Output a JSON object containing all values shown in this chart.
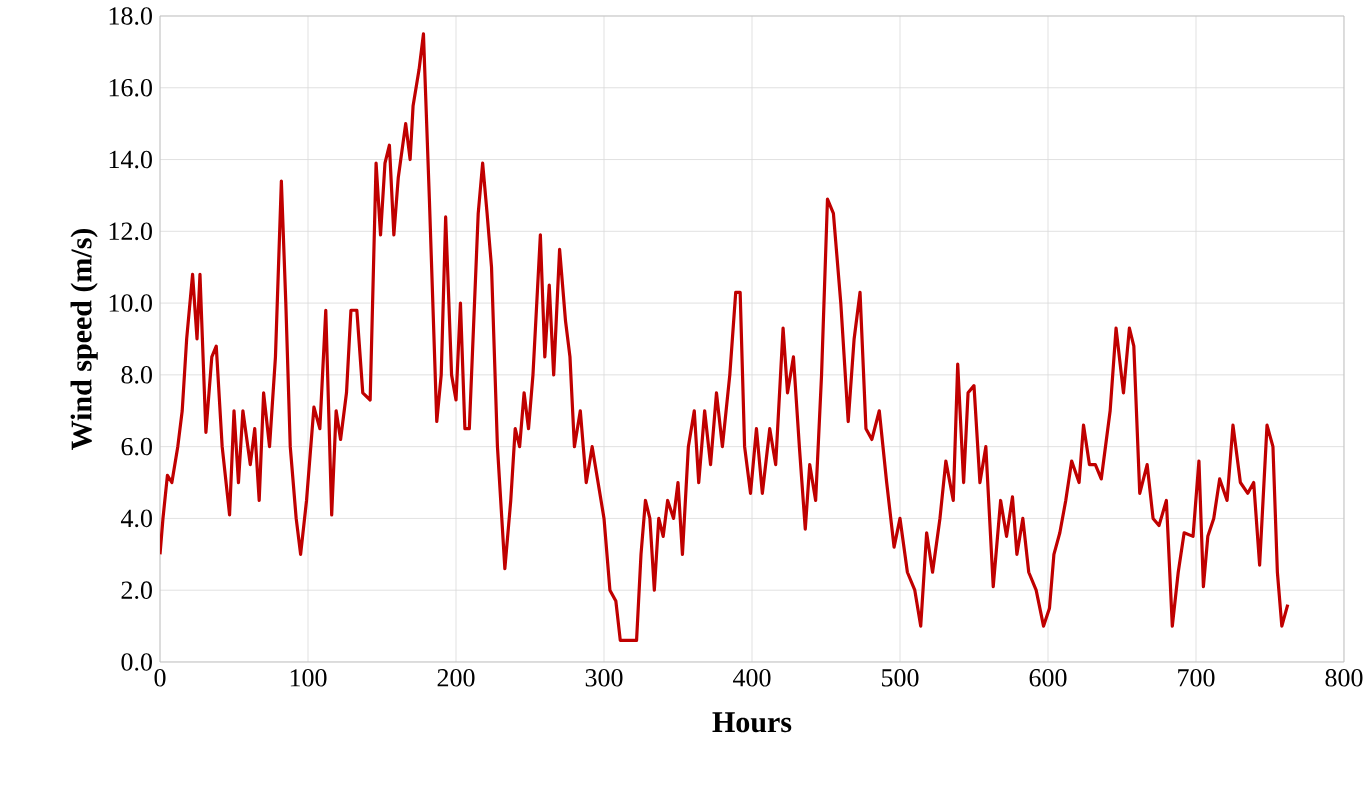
{
  "chart_data": {
    "type": "line",
    "xlabel": "Hours",
    "ylabel": "Wind  speed (m/s)",
    "xlim": [
      0,
      800
    ],
    "ylim": [
      0,
      18
    ],
    "xticks": [
      0,
      100,
      200,
      300,
      400,
      500,
      600,
      700,
      800
    ],
    "yticks": [
      {
        "value": 0,
        "label": "0.0"
      },
      {
        "value": 2,
        "label": "2.0"
      },
      {
        "value": 4,
        "label": "4.0"
      },
      {
        "value": 6,
        "label": "6.0"
      },
      {
        "value": 8,
        "label": "8.0"
      },
      {
        "value": 10,
        "label": "10.0"
      },
      {
        "value": 12,
        "label": "12.0"
      },
      {
        "value": 14,
        "label": "14.0"
      },
      {
        "value": 16,
        "label": "16.0"
      },
      {
        "value": 18,
        "label": "18.0"
      }
    ],
    "grid": true,
    "marker": "none",
    "line_style": "solid",
    "series": [
      {
        "color": "#c00000",
        "x": [
          0,
          2,
          5,
          8,
          12,
          15,
          18,
          22,
          25,
          27,
          31,
          35,
          38,
          42,
          47,
          50,
          53,
          56,
          61,
          64,
          67,
          70,
          74,
          78,
          82,
          85,
          88,
          92,
          95,
          99,
          104,
          108,
          112,
          116,
          119,
          122,
          126,
          129,
          133,
          137,
          142,
          146,
          149,
          152,
          155,
          158,
          161,
          166,
          169,
          171,
          175,
          178,
          182,
          187,
          190,
          193,
          197,
          200,
          203,
          206,
          209,
          212,
          215,
          218,
          221,
          224,
          228,
          233,
          237,
          240,
          243,
          246,
          249,
          252,
          257,
          260,
          263,
          266,
          270,
          274,
          277,
          280,
          284,
          288,
          292,
          296,
          300,
          304,
          308,
          311,
          316,
          322,
          325,
          328,
          331,
          334,
          337,
          340,
          343,
          347,
          350,
          353,
          357,
          361,
          364,
          368,
          372,
          376,
          380,
          385,
          389,
          392,
          395,
          399,
          403,
          407,
          412,
          416,
          421,
          424,
          428,
          432,
          436,
          439,
          443,
          447,
          451,
          455,
          460,
          465,
          469,
          473,
          477,
          481,
          486,
          491,
          496,
          500,
          505,
          510,
          514,
          518,
          522,
          527,
          531,
          536,
          539,
          543,
          546,
          550,
          554,
          558,
          563,
          568,
          572,
          576,
          579,
          583,
          587,
          592,
          597,
          601,
          604,
          608,
          612,
          616,
          621,
          624,
          628,
          632,
          636,
          642,
          646,
          651,
          655,
          658,
          662,
          667,
          671,
          675,
          680,
          684,
          688,
          692,
          698,
          702,
          705,
          708,
          712,
          716,
          721,
          725,
          730,
          735,
          739,
          743,
          748,
          752,
          755,
          758,
          762
        ],
        "values": [
          3.0,
          4.0,
          5.2,
          5.0,
          6.0,
          7.0,
          9.0,
          10.8,
          9.0,
          10.8,
          6.4,
          8.5,
          8.8,
          6.0,
          4.1,
          7.0,
          5.0,
          7.0,
          5.5,
          6.5,
          4.5,
          7.5,
          6.0,
          8.5,
          13.4,
          10.0,
          6.0,
          4.0,
          3.0,
          4.5,
          7.1,
          6.5,
          9.8,
          4.1,
          7.0,
          6.2,
          7.5,
          9.8,
          9.8,
          7.5,
          7.3,
          13.9,
          11.9,
          13.9,
          14.4,
          11.9,
          13.5,
          15.0,
          14.0,
          15.5,
          16.5,
          17.5,
          12.9,
          6.7,
          8.0,
          12.4,
          8.0,
          7.3,
          10.0,
          6.5,
          6.5,
          9.5,
          12.5,
          13.9,
          12.5,
          11.0,
          6.0,
          2.6,
          4.5,
          6.5,
          6.0,
          7.5,
          6.5,
          8.0,
          11.9,
          8.5,
          10.5,
          8.0,
          11.5,
          9.5,
          8.5,
          6.0,
          7.0,
          5.0,
          6.0,
          5.0,
          4.0,
          2.0,
          1.7,
          0.6,
          0.6,
          0.6,
          3.0,
          4.5,
          4.0,
          2.0,
          4.0,
          3.5,
          4.5,
          4.0,
          5.0,
          3.0,
          6.0,
          7.0,
          5.0,
          7.0,
          5.5,
          7.5,
          6.0,
          8.0,
          10.3,
          10.3,
          6.0,
          4.7,
          6.5,
          4.7,
          6.5,
          5.5,
          9.3,
          7.5,
          8.5,
          6.0,
          3.7,
          5.5,
          4.5,
          8.0,
          12.9,
          12.5,
          10.0,
          6.7,
          9.0,
          10.3,
          6.5,
          6.2,
          7.0,
          5.0,
          3.2,
          4.0,
          2.5,
          2.0,
          1.0,
          3.6,
          2.5,
          4.0,
          5.6,
          4.5,
          8.3,
          5.0,
          7.5,
          7.7,
          5.0,
          6.0,
          2.1,
          4.5,
          3.5,
          4.6,
          3.0,
          4.0,
          2.5,
          2.0,
          1.0,
          1.5,
          3.0,
          3.6,
          4.5,
          5.6,
          5.0,
          6.6,
          5.5,
          5.5,
          5.1,
          7.0,
          9.3,
          7.5,
          9.3,
          8.8,
          4.7,
          5.5,
          4.0,
          3.8,
          4.5,
          1.0,
          2.5,
          3.6,
          3.5,
          5.6,
          2.1,
          3.5,
          4.0,
          5.1,
          4.5,
          6.6,
          5.0,
          4.7,
          5.0,
          2.7,
          6.6,
          6.0,
          2.5,
          1.0,
          1.6
        ]
      }
    ]
  }
}
